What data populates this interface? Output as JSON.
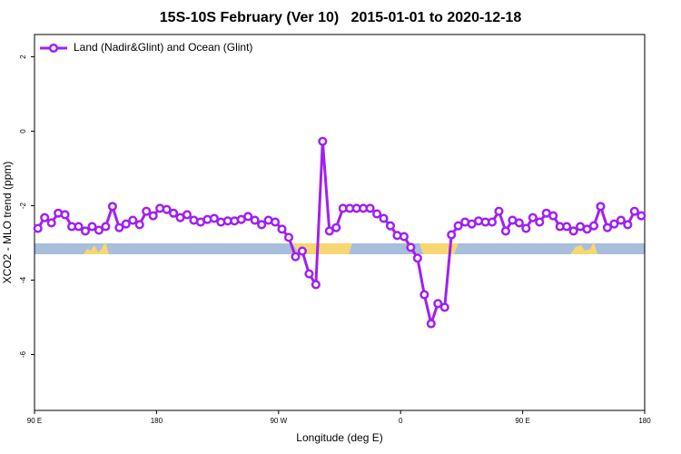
{
  "chart_data": {
    "type": "line",
    "title": "15S-10S February (Ver 10)   2015-01-01 to 2020-12-18",
    "x_label": "Longitude (deg E)",
    "y_label": "XCO2 - MLO trend (ppm)",
    "xlim": [
      90,
      540
    ],
    "ylim": [
      -7.5,
      2.6
    ],
    "xticks": [
      {
        "value": 90,
        "label": "90 E"
      },
      {
        "value": 180,
        "label": "180"
      },
      {
        "value": 270,
        "label": "90 W"
      },
      {
        "value": 360,
        "label": "0"
      },
      {
        "value": 450,
        "label": "90 E"
      },
      {
        "value": 540,
        "label": "180"
      }
    ],
    "yticks": [
      -6,
      -4,
      -2,
      0,
      2
    ],
    "legend": "top-left",
    "series": [
      {
        "name": "Land (Nadir&Glint) and Ocean (Glint)",
        "color": "#a020f0",
        "x": [
          92.5,
          97.5,
          102.5,
          107.5,
          112.5,
          117.5,
          122.5,
          127.5,
          132.5,
          137.5,
          142.5,
          147.5,
          152.5,
          157.5,
          162.5,
          167.5,
          172.5,
          177.5,
          182.5,
          187.5,
          192.5,
          197.5,
          202.5,
          207.5,
          212.5,
          217.5,
          222.5,
          227.5,
          232.5,
          237.5,
          242.5,
          247.5,
          252.5,
          257.5,
          262.5,
          267.5,
          272.5,
          277.5,
          282.5,
          287.5,
          292.5,
          297.5,
          302.5,
          307.5,
          312.5,
          317.5,
          322.5,
          327.5,
          332.5,
          337.5,
          342.5,
          347.5,
          352.5,
          357.5,
          362.5,
          367.5,
          372.5,
          377.5,
          382.5,
          387.5,
          392.5,
          397.5,
          402.5,
          407.5,
          412.5,
          417.5,
          422.5,
          427.5,
          432.5,
          437.5,
          442.5,
          447.5,
          452.5,
          457.5,
          462.5,
          467.5,
          472.5,
          477.5,
          482.5,
          487.5,
          492.5,
          497.5,
          502.5,
          507.5,
          512.5,
          517.5,
          522.5,
          527.5,
          532.5,
          537.5
        ],
        "values": [
          -2.61,
          -2.32,
          -2.46,
          -2.2,
          -2.24,
          -2.56,
          -2.56,
          -2.68,
          -2.56,
          -2.66,
          -2.56,
          -2.02,
          -2.59,
          -2.49,
          -2.39,
          -2.51,
          -2.15,
          -2.27,
          -2.07,
          -2.1,
          -2.2,
          -2.32,
          -2.24,
          -2.39,
          -2.44,
          -2.37,
          -2.34,
          -2.44,
          -2.41,
          -2.41,
          -2.37,
          -2.29,
          -2.39,
          -2.51,
          -2.39,
          -2.44,
          -2.63,
          -2.85,
          -3.37,
          -3.22,
          -3.83,
          -4.12,
          -0.27,
          -2.68,
          -2.59,
          -2.07,
          -2.07,
          -2.07,
          -2.07,
          -2.07,
          -2.22,
          -2.34,
          -2.54,
          -2.8,
          -2.83,
          -3.12,
          -3.41,
          -4.39,
          -5.17,
          -4.63,
          -4.73,
          -2.78,
          -2.54,
          -2.44,
          -2.49,
          -2.41,
          -2.44,
          -2.44,
          -2.15,
          -2.68,
          -2.39,
          -2.46,
          -2.61,
          -2.32,
          -2.44,
          -2.2,
          -2.27,
          -2.56,
          -2.56,
          -2.68,
          -2.56,
          -2.63,
          -2.54,
          -2.02,
          -2.59,
          -2.49,
          -2.39,
          -2.51,
          -2.15,
          -2.27
        ]
      }
    ]
  }
}
